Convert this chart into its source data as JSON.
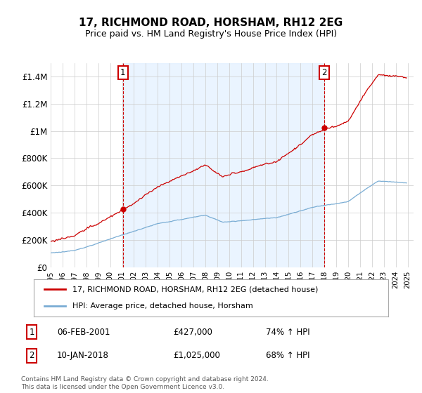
{
  "title": "17, RICHMOND ROAD, HORSHAM, RH12 2EG",
  "subtitle": "Price paid vs. HM Land Registry's House Price Index (HPI)",
  "ylim": [
    0,
    1500000
  ],
  "yticks": [
    0,
    200000,
    400000,
    600000,
    800000,
    1000000,
    1200000,
    1400000
  ],
  "ytick_labels": [
    "£0",
    "£200K",
    "£400K",
    "£600K",
    "£800K",
    "£1M",
    "£1.2M",
    "£1.4M"
  ],
  "red_line_color": "#cc0000",
  "blue_line_color": "#7aadd4",
  "vline_color": "#cc0000",
  "fill_color": "#ddeeff",
  "sale1_x": 2001.083,
  "sale1_y": 427000,
  "sale2_x": 2018.0,
  "sale2_y": 1025000,
  "legend_label_red": "17, RICHMOND ROAD, HORSHAM, RH12 2EG (detached house)",
  "legend_label_blue": "HPI: Average price, detached house, Horsham",
  "sale1_date": "06-FEB-2001",
  "sale1_price": "£427,000",
  "sale1_hpi_pct": "74% ↑ HPI",
  "sale2_date": "10-JAN-2018",
  "sale2_price": "£1,025,000",
  "sale2_hpi_pct": "68% ↑ HPI",
  "footnote": "Contains HM Land Registry data © Crown copyright and database right 2024.\nThis data is licensed under the Open Government Licence v3.0.",
  "background_color": "#ffffff",
  "grid_color": "#cccccc",
  "xlim_start": 1995.0,
  "xlim_end": 2025.5
}
